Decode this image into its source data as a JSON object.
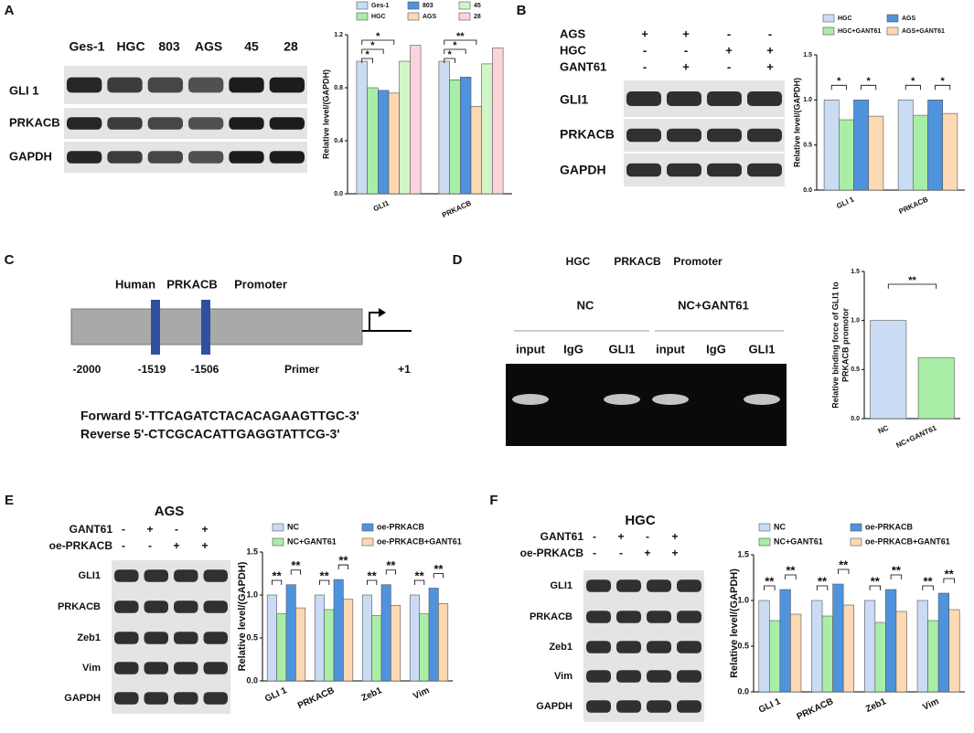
{
  "panels": {
    "A": {
      "letter": "A",
      "lanes": [
        "Ges-1",
        "HGC",
        "803",
        "AGS",
        "45",
        "28"
      ],
      "rows": [
        "GLI 1",
        "PRKACB",
        "GAPDH"
      ]
    },
    "B": {
      "letter": "B",
      "treatments": [
        {
          "name": "AGS",
          "signs": [
            "+",
            "+",
            "-",
            "-"
          ]
        },
        {
          "name": "HGC",
          "signs": [
            "-",
            "-",
            "+",
            "+"
          ]
        },
        {
          "name": "GANT61",
          "signs": [
            "-",
            "+",
            "-",
            "+"
          ]
        }
      ],
      "rows": [
        "GLI1",
        "PRKACB",
        "GAPDH"
      ]
    },
    "C": {
      "letter": "C",
      "title": [
        "Human",
        "PRKACB",
        "Promoter"
      ],
      "positions": [
        "-2000",
        "-1519",
        "-1506"
      ],
      "primer": "Primer",
      "tss": "+1",
      "forward": "Forward 5'-TTCAGATCTACACAGAAGTTGC-3'",
      "reverse": "Reverse 5'-CTCGCACATTGAGGTATTCG-3'"
    },
    "D": {
      "letter": "D",
      "title": [
        "HGC",
        "PRKACB",
        "Promoter"
      ],
      "groups": [
        "NC",
        "NC+GANT61"
      ],
      "lanes": [
        "input",
        "IgG",
        "GLI1",
        "input",
        "IgG",
        "GLI1"
      ]
    },
    "E": {
      "letter": "E",
      "title": "AGS",
      "treatments": [
        {
          "name": "GANT61",
          "signs": [
            "-",
            "+",
            "-",
            "+"
          ]
        },
        {
          "name": "oe-PRKACB",
          "signs": [
            "-",
            "-",
            "+",
            "+"
          ]
        }
      ],
      "rows": [
        "GLI1",
        "PRKACB",
        "Zeb1",
        "Vim",
        "GAPDH"
      ]
    },
    "F": {
      "letter": "F",
      "title": "HGC",
      "treatments": [
        {
          "name": "GANT61",
          "signs": [
            "-",
            "+",
            "-",
            "+"
          ]
        },
        {
          "name": "oe-PRKACB",
          "signs": [
            "-",
            "-",
            "+",
            "+"
          ]
        }
      ],
      "rows": [
        "GLI1",
        "PRKACB",
        "Zeb1",
        "Vim",
        "GAPDH"
      ]
    }
  },
  "chart_data": [
    {
      "type": "bar",
      "y_label": "Relative level/(GAPDH)",
      "categories": [
        "GLI1",
        "PRKACB"
      ],
      "series": [
        {
          "name": "Ges-1",
          "color": "#c9dcf3",
          "values": [
            1.0,
            1.0
          ]
        },
        {
          "name": "HGC",
          "color": "#a9eea6",
          "values": [
            0.8,
            0.86
          ]
        },
        {
          "name": "803",
          "color": "#4f93de",
          "values": [
            0.78,
            0.88
          ]
        },
        {
          "name": "AGS",
          "color": "#fcd9b2",
          "values": [
            0.76,
            0.66
          ]
        },
        {
          "name": "45",
          "color": "#d2f5c8",
          "values": [
            1.0,
            0.98
          ]
        },
        {
          "name": "28",
          "color": "#fbd3da",
          "values": [
            1.12,
            1.1
          ]
        }
      ],
      "ylim": [
        0,
        1.2
      ],
      "yticks": [
        {
          "value": 0,
          "label": "0.0"
        },
        0.4,
        0.8,
        1.2
      ],
      "annotations": [
        "*",
        "*",
        "*",
        "*",
        "*",
        "**"
      ]
    },
    {
      "type": "bar",
      "y_label": "Relative level/(GAPDH)",
      "categories": [
        "GLI 1",
        "PRKACB"
      ],
      "series": [
        {
          "name": "HGC",
          "color": "#c9dcf3",
          "values": [
            1.0,
            1.0
          ]
        },
        {
          "name": "HGC+GANT61",
          "color": "#a9eea6",
          "values": [
            0.78,
            0.83
          ]
        },
        {
          "name": "AGS",
          "color": "#4f93de",
          "values": [
            1.0,
            1.0
          ]
        },
        {
          "name": "AGS+GANT61",
          "color": "#fcd9b2",
          "values": [
            0.82,
            0.85
          ]
        }
      ],
      "ylim": [
        0,
        1.5
      ],
      "yticks": [
        {
          "value": 0,
          "label": "0.0"
        },
        0.5,
        {
          "value": 1,
          "label": "1.0"
        },
        1.5
      ],
      "annotations": [
        "*",
        "*",
        "*",
        "*"
      ]
    },
    {
      "type": "bar",
      "y_label": "Relative binding force of GLI1 to PRKACB promotor",
      "categories": [
        "NC",
        "NC+GANT61"
      ],
      "values": [
        1.0,
        0.62
      ],
      "colors": [
        "#c9dcf3",
        "#a9eea6"
      ],
      "ylim": [
        0,
        1.5
      ],
      "yticks": [
        {
          "value": 0,
          "label": "0.0"
        },
        0.5,
        {
          "value": 1,
          "label": "1.0"
        },
        1.5
      ],
      "annotations": [
        "**"
      ]
    },
    {
      "type": "bar",
      "y_label": "Relative level/(GAPDH)",
      "categories": [
        "GLI 1",
        "PRKACB",
        "Zeb1",
        "Vim"
      ],
      "series": [
        {
          "name": "NC",
          "color": "#c9dcf3",
          "values": [
            1.0,
            1.0,
            1.0,
            1.0
          ]
        },
        {
          "name": "NC+GANT61",
          "color": "#a9eea6",
          "values": [
            0.78,
            0.83,
            0.76,
            0.78
          ]
        },
        {
          "name": "oe-PRKACB",
          "color": "#4f93de",
          "values": [
            1.12,
            1.18,
            1.12,
            1.08
          ]
        },
        {
          "name": "oe-PRKACB+GANT61",
          "color": "#fcd9b2",
          "values": [
            0.85,
            0.95,
            0.88,
            0.9
          ]
        }
      ],
      "ylim": [
        0,
        1.5
      ],
      "yticks": [
        {
          "value": 0,
          "label": "0.0"
        },
        0.5,
        {
          "value": 1,
          "label": "1.0"
        },
        1.5
      ],
      "annotations": [
        "**",
        "**",
        "**",
        "**",
        "**",
        "**",
        "**",
        "**"
      ]
    },
    {
      "type": "bar",
      "y_label": "Relative level/(GAPDH)",
      "categories": [
        "GLI 1",
        "PRKACB",
        "Zeb1",
        "Vim"
      ],
      "series": [
        {
          "name": "NC",
          "color": "#c9dcf3",
          "values": [
            1.0,
            1.0,
            1.0,
            1.0
          ]
        },
        {
          "name": "NC+GANT61",
          "color": "#a9eea6",
          "values": [
            0.78,
            0.83,
            0.76,
            0.78
          ]
        },
        {
          "name": "oe-PRKACB",
          "color": "#4f93de",
          "values": [
            1.12,
            1.18,
            1.12,
            1.08
          ]
        },
        {
          "name": "oe-PRKACB+GANT61",
          "color": "#fcd9b2",
          "values": [
            0.85,
            0.95,
            0.88,
            0.9
          ]
        }
      ],
      "ylim": [
        0,
        1.5
      ],
      "yticks": [
        {
          "value": 0,
          "label": "0.0"
        },
        0.5,
        {
          "value": 1,
          "label": "1.0"
        },
        1.5
      ],
      "annotations": [
        "**",
        "**",
        "**",
        "**",
        "**",
        "**",
        "**",
        "**"
      ]
    }
  ]
}
